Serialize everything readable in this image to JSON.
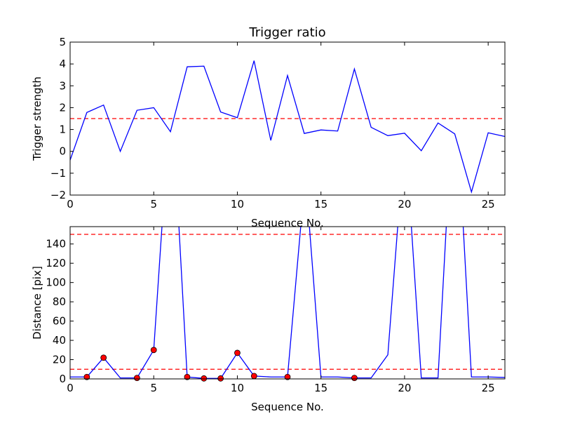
{
  "chart_data": [
    {
      "type": "line",
      "title": "Trigger ratio",
      "xlabel": "Sequence No.",
      "ylabel": "Trigger strength",
      "xlim": [
        0,
        26
      ],
      "ylim": [
        -2,
        5
      ],
      "xticks": [
        0,
        5,
        10,
        15,
        20,
        25
      ],
      "yticks": [
        -2,
        -1,
        0,
        1,
        2,
        3,
        4,
        5
      ],
      "grid": false,
      "line_color": "#0000ff",
      "threshold_color": "#ff0000",
      "thresholds": [
        1.5
      ],
      "series": [
        {
          "x": [
            0,
            1,
            2,
            3,
            4,
            5,
            6,
            7,
            8,
            9,
            10,
            11,
            12,
            13,
            14,
            15,
            16,
            17,
            18,
            19,
            20,
            21,
            22,
            23,
            24,
            25,
            26
          ],
          "values": [
            -0.4,
            1.78,
            2.12,
            0.0,
            1.88,
            2.0,
            0.9,
            3.87,
            3.9,
            1.8,
            1.54,
            4.15,
            0.5,
            3.47,
            0.82,
            0.98,
            0.93,
            3.77,
            1.1,
            0.72,
            0.83,
            0.03,
            1.3,
            0.8,
            -1.86,
            0.85,
            0.68
          ]
        }
      ]
    },
    {
      "type": "line",
      "title": "",
      "xlabel": "Sequence No.",
      "ylabel": "Distance [pix]",
      "xlim": [
        0,
        26
      ],
      "ylim": [
        0,
        158
      ],
      "xticks": [
        0,
        5,
        10,
        15,
        20,
        25
      ],
      "yticks": [
        0,
        20,
        40,
        60,
        80,
        100,
        120,
        140
      ],
      "grid": false,
      "line_color": "#0000ff",
      "marker_color": "#ff0000",
      "threshold_color": "#ff0000",
      "thresholds": [
        150,
        10
      ],
      "series": [
        {
          "x": [
            0,
            1,
            2,
            3,
            4,
            5,
            5.5,
            6.5,
            7,
            8,
            9,
            10,
            11,
            12,
            13,
            13.8,
            14.3,
            15,
            16,
            17,
            18,
            19,
            19.6,
            20.4,
            21,
            22,
            22.5,
            23.5,
            24,
            25,
            26
          ],
          "values": [
            2,
            2,
            22,
            1,
            1,
            30,
            160,
            160,
            2,
            0.5,
            0.5,
            27,
            3,
            2,
            2,
            160,
            160,
            2,
            2,
            1,
            1,
            25,
            160,
            160,
            1,
            1,
            160,
            160,
            2,
            2,
            1.5
          ]
        }
      ],
      "markers": {
        "x": [
          1,
          2,
          4,
          5,
          7,
          8,
          9,
          10,
          11,
          13,
          17
        ],
        "values": [
          2,
          22,
          1,
          30,
          2,
          0.5,
          0.5,
          27,
          3,
          2,
          1
        ]
      }
    }
  ]
}
